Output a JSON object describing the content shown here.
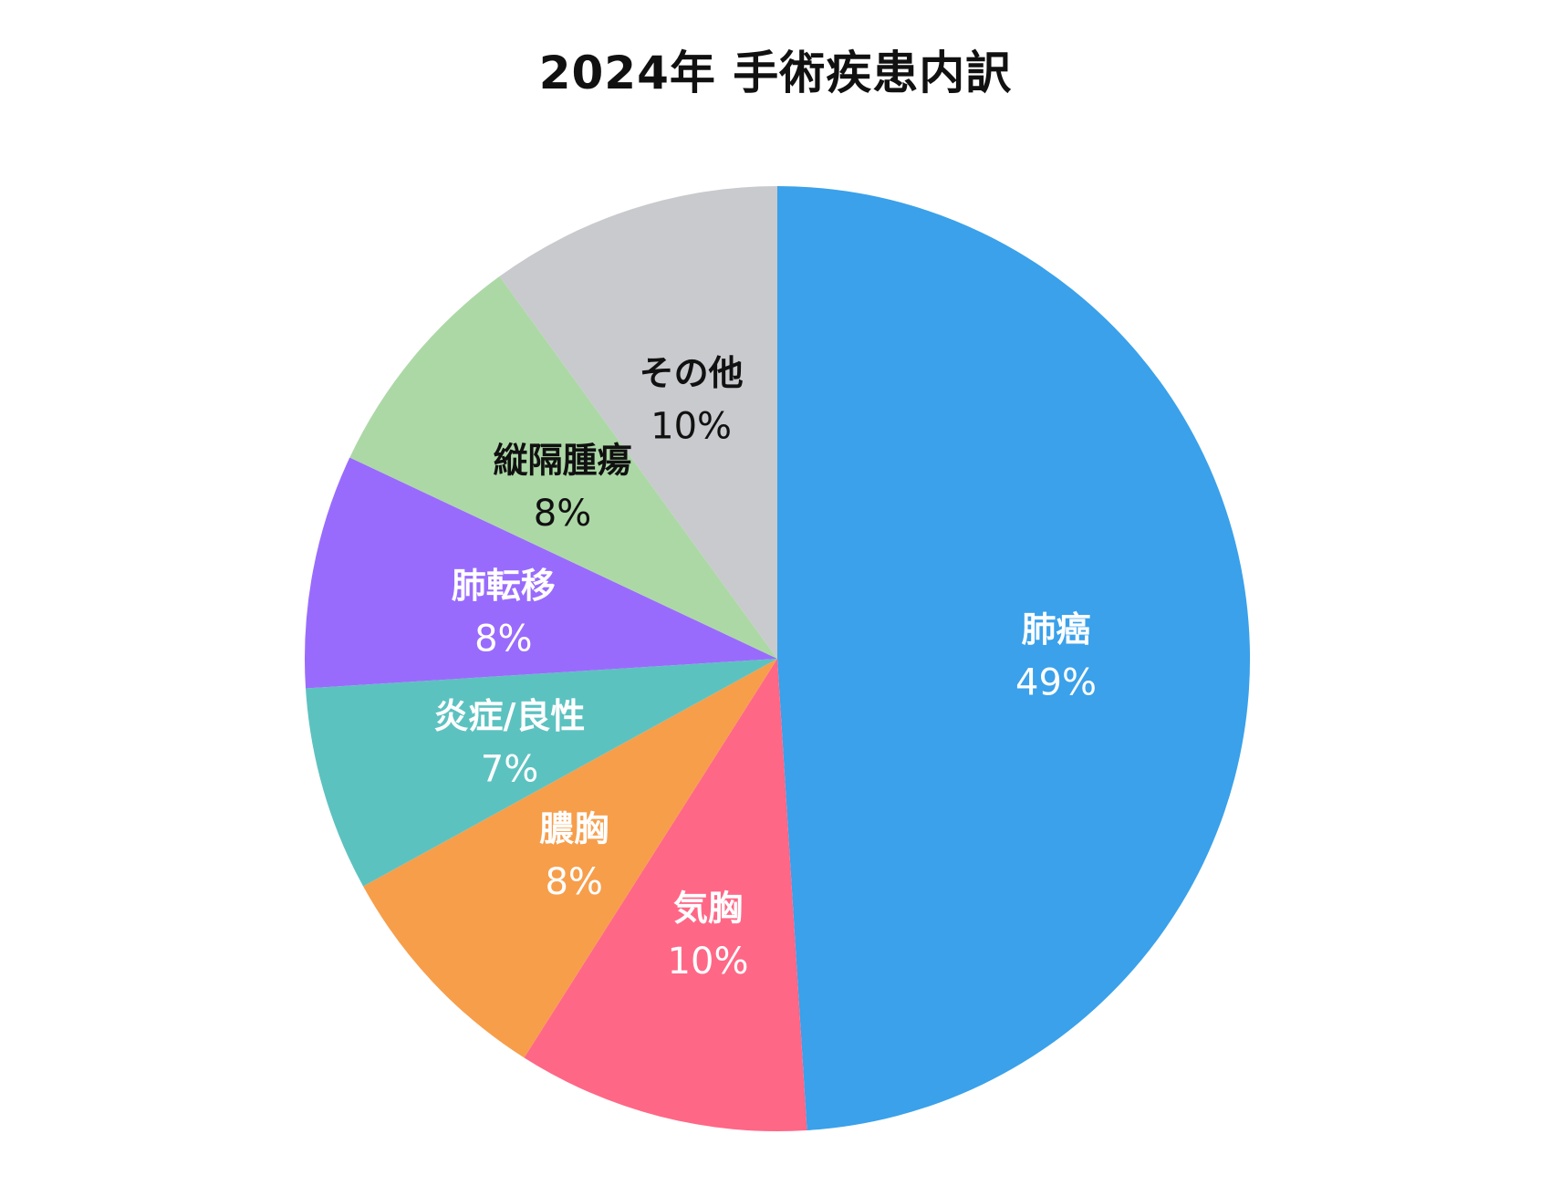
{
  "chart_data": {
    "type": "pie",
    "title": "2024年 手術疾患内訳",
    "start_angle_deg": 0,
    "direction": "clockwise",
    "slices": [
      {
        "label": "肺癌",
        "value": 49,
        "value_label": "49%",
        "color": "#3aa1ea",
        "text_color": "#ffffff"
      },
      {
        "label": "気胸",
        "value": 10,
        "value_label": "10%",
        "color": "#ff6786",
        "text_color": "#ffffff"
      },
      {
        "label": "膿胸",
        "value": 8,
        "value_label": "8%",
        "color": "#f79e4b",
        "text_color": "#ffffff"
      },
      {
        "label": "炎症/良性",
        "value": 7,
        "value_label": "7%",
        "color": "#5cc2c0",
        "text_color": "#ffffff"
      },
      {
        "label": "肺転移",
        "value": 8,
        "value_label": "8%",
        "color": "#996bfc",
        "text_color": "#ffffff"
      },
      {
        "label": "縦隔腫瘍",
        "value": 8,
        "value_label": "8%",
        "color": "#acd8a6",
        "text_color": "#111111"
      },
      {
        "label": "その他",
        "value": 10,
        "value_label": "10%",
        "color": "#c9cacd",
        "text_color": "#111111"
      }
    ]
  }
}
